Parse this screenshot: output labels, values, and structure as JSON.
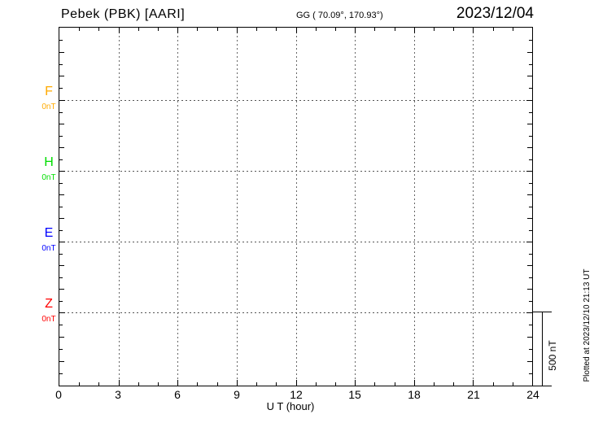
{
  "header": {
    "station_title": "Pebek (PBK)  [AARI]",
    "gg_coords": "GG ( 70.09°, 170.93°)",
    "date": "2023/12/04"
  },
  "components": [
    {
      "label": "F",
      "value_label": "0nT",
      "color": "#FFAA00"
    },
    {
      "label": "H",
      "value_label": "0nT",
      "color": "#00DD00"
    },
    {
      "label": "E",
      "value_label": "0nT",
      "color": "#0000FF"
    },
    {
      "label": "Z",
      "value_label": "0nT",
      "color": "#FF0000"
    }
  ],
  "x_axis": {
    "label": "U T (hour)",
    "ticks": [
      "0",
      "3",
      "6",
      "9",
      "12",
      "15",
      "18",
      "21",
      "24"
    ]
  },
  "scale_bar": {
    "label": "500 nT"
  },
  "footer_note": "Plotted at 2023/12/10 21:13 UT",
  "chart_data": {
    "type": "line",
    "title": "Pebek (PBK) [AARI] magnetogram — 2023/12/04",
    "xlabel": "U T (hour)",
    "ylabel": "nT",
    "x_range": [
      0,
      24
    ],
    "x_major_ticks": [
      0,
      3,
      6,
      9,
      12,
      15,
      18,
      21,
      24
    ],
    "x_minor_tick_interval_hours": 1,
    "grid": "dotted vertical lines every 3 hours; dotted horizontal baseline per component",
    "legend_position": "left margin, one colored label per component",
    "scale_bar_nT": 500,
    "series": [
      {
        "name": "F",
        "baseline_nT": 0,
        "color": "#FFAA00",
        "values": []
      },
      {
        "name": "H",
        "baseline_nT": 0,
        "color": "#00DD00",
        "values": []
      },
      {
        "name": "E",
        "baseline_nT": 0,
        "color": "#0000FF",
        "values": []
      },
      {
        "name": "Z",
        "baseline_nT": 0,
        "color": "#FF0000",
        "values": []
      }
    ],
    "note": "No data traces are drawn; only the 0 nT baselines of F, H, E, Z are shown"
  }
}
